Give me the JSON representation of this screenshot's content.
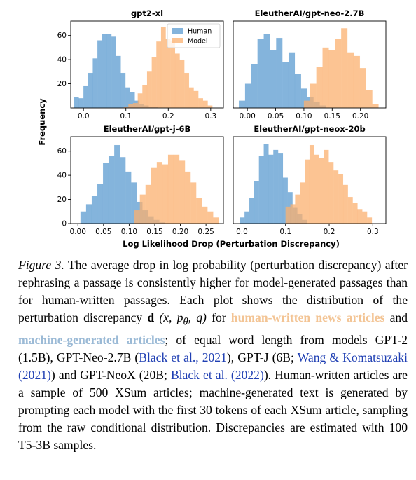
{
  "chart_data": [
    {
      "type": "histogram",
      "title": "gpt2-xl",
      "xticks": [
        "0.0",
        "0.1",
        "0.2",
        "0.3"
      ],
      "xlim": [
        -0.03,
        0.33
      ],
      "yticks": [
        "20",
        "40",
        "60"
      ],
      "ylim": [
        0,
        72
      ],
      "legend": {
        "position": "top-right",
        "entries": [
          "Human",
          "Model"
        ]
      },
      "series": [
        {
          "name": "Human",
          "color": "#5b9bd0",
          "bins": [
            [
              -0.022,
              -0.011,
              9
            ],
            [
              -0.011,
              0.0,
              8
            ],
            [
              0.0,
              0.011,
              18
            ],
            [
              0.011,
              0.022,
              29
            ],
            [
              0.022,
              0.033,
              41
            ],
            [
              0.033,
              0.044,
              56
            ],
            [
              0.044,
              0.055,
              61
            ],
            [
              0.055,
              0.066,
              61
            ],
            [
              0.066,
              0.077,
              59
            ],
            [
              0.077,
              0.088,
              43
            ],
            [
              0.088,
              0.099,
              29
            ],
            [
              0.099,
              0.11,
              17
            ],
            [
              0.11,
              0.121,
              13
            ],
            [
              0.121,
              0.132,
              6
            ],
            [
              0.132,
              0.143,
              3
            ],
            [
              0.143,
              0.154,
              2
            ],
            [
              0.154,
              0.165,
              1
            ],
            [
              0.165,
              0.176,
              1
            ]
          ]
        },
        {
          "name": "Model",
          "color": "#fbb06f",
          "bins": [
            [
              0.095,
              0.106,
              1
            ],
            [
              0.106,
              0.117,
              3
            ],
            [
              0.117,
              0.128,
              4
            ],
            [
              0.128,
              0.139,
              12
            ],
            [
              0.139,
              0.15,
              19
            ],
            [
              0.15,
              0.161,
              30
            ],
            [
              0.161,
              0.172,
              42
            ],
            [
              0.172,
              0.183,
              55
            ],
            [
              0.183,
              0.194,
              67
            ],
            [
              0.194,
              0.205,
              57
            ],
            [
              0.205,
              0.216,
              56
            ],
            [
              0.216,
              0.227,
              45
            ],
            [
              0.227,
              0.238,
              40
            ],
            [
              0.238,
              0.249,
              29
            ],
            [
              0.249,
              0.26,
              17
            ],
            [
              0.26,
              0.271,
              14
            ],
            [
              0.271,
              0.282,
              8
            ],
            [
              0.282,
              0.293,
              6
            ],
            [
              0.293,
              0.304,
              2
            ]
          ]
        }
      ]
    },
    {
      "type": "histogram",
      "title": "EleutherAI/gpt-neo-2.7B",
      "xticks": [
        "0.00",
        "0.05",
        "0.10",
        "0.15",
        "0.20"
      ],
      "xlim": [
        -0.025,
        0.245
      ],
      "yticks": [],
      "ylim": [
        0,
        72
      ],
      "series": [
        {
          "name": "Human",
          "color": "#5b9bd0",
          "bins": [
            [
              -0.015,
              -0.004,
              6
            ],
            [
              -0.004,
              0.007,
              20
            ],
            [
              0.007,
              0.018,
              36
            ],
            [
              0.018,
              0.029,
              57
            ],
            [
              0.029,
              0.04,
              61
            ],
            [
              0.04,
              0.051,
              48
            ],
            [
              0.051,
              0.062,
              58
            ],
            [
              0.062,
              0.073,
              38
            ],
            [
              0.073,
              0.084,
              46
            ],
            [
              0.084,
              0.095,
              28
            ],
            [
              0.095,
              0.106,
              16
            ],
            [
              0.106,
              0.117,
              9
            ],
            [
              0.117,
              0.128,
              5
            ],
            [
              0.128,
              0.139,
              2
            ]
          ]
        },
        {
          "name": "Model",
          "color": "#fbb06f",
          "bins": [
            [
              0.1,
              0.111,
              6
            ],
            [
              0.111,
              0.122,
              20
            ],
            [
              0.122,
              0.133,
              34
            ],
            [
              0.133,
              0.144,
              50
            ],
            [
              0.144,
              0.155,
              48
            ],
            [
              0.155,
              0.166,
              57
            ],
            [
              0.166,
              0.177,
              66
            ],
            [
              0.177,
              0.188,
              46
            ],
            [
              0.188,
              0.199,
              43
            ],
            [
              0.199,
              0.21,
              33
            ],
            [
              0.21,
              0.221,
              15
            ],
            [
              0.221,
              0.232,
              3
            ]
          ]
        }
      ]
    },
    {
      "type": "histogram",
      "title": "EleutherAI/gpt-j-6B",
      "xticks": [
        "0.00",
        "0.05",
        "0.10",
        "0.15",
        "0.20",
        "0.25"
      ],
      "xlim": [
        -0.014,
        0.284
      ],
      "yticks": [
        "0",
        "20",
        "40",
        "60"
      ],
      "ylim": [
        0,
        72
      ],
      "series": [
        {
          "name": "Human",
          "color": "#5b9bd0",
          "bins": [
            [
              0.005,
              0.016,
              10
            ],
            [
              0.016,
              0.027,
              16
            ],
            [
              0.027,
              0.038,
              23
            ],
            [
              0.038,
              0.049,
              33
            ],
            [
              0.049,
              0.06,
              50
            ],
            [
              0.06,
              0.071,
              56
            ],
            [
              0.071,
              0.082,
              65
            ],
            [
              0.082,
              0.093,
              55
            ],
            [
              0.093,
              0.104,
              43
            ],
            [
              0.104,
              0.115,
              34
            ],
            [
              0.115,
              0.126,
              18
            ],
            [
              0.126,
              0.137,
              11
            ],
            [
              0.137,
              0.148,
              6
            ],
            [
              0.148,
              0.159,
              3
            ],
            [
              0.159,
              0.17,
              1
            ]
          ]
        },
        {
          "name": "Model",
          "color": "#fbb06f",
          "bins": [
            [
              0.11,
              0.121,
              11
            ],
            [
              0.121,
              0.132,
              24
            ],
            [
              0.132,
              0.143,
              32
            ],
            [
              0.143,
              0.154,
              46
            ],
            [
              0.154,
              0.165,
              51
            ],
            [
              0.165,
              0.176,
              49
            ],
            [
              0.176,
              0.187,
              57
            ],
            [
              0.187,
              0.198,
              57
            ],
            [
              0.198,
              0.209,
              52
            ],
            [
              0.209,
              0.22,
              43
            ],
            [
              0.22,
              0.231,
              34
            ],
            [
              0.231,
              0.242,
              21
            ],
            [
              0.242,
              0.253,
              14
            ],
            [
              0.253,
              0.264,
              10
            ],
            [
              0.264,
              0.275,
              5
            ]
          ]
        }
      ]
    },
    {
      "type": "histogram",
      "title": "EleutherAI/gpt-neox-20b",
      "xticks": [
        "0.0",
        "0.1",
        "0.2",
        "0.3"
      ],
      "xlim": [
        -0.02,
        0.33
      ],
      "yticks": [],
      "ylim": [
        0,
        72
      ],
      "series": [
        {
          "name": "Human",
          "color": "#5b9bd0",
          "bins": [
            [
              -0.005,
              0.006,
              5
            ],
            [
              0.006,
              0.017,
              10
            ],
            [
              0.017,
              0.028,
              21
            ],
            [
              0.028,
              0.039,
              35
            ],
            [
              0.039,
              0.05,
              56
            ],
            [
              0.05,
              0.061,
              66
            ],
            [
              0.061,
              0.072,
              57
            ],
            [
              0.072,
              0.083,
              61
            ],
            [
              0.083,
              0.094,
              58
            ],
            [
              0.094,
              0.105,
              38
            ],
            [
              0.105,
              0.116,
              26
            ],
            [
              0.116,
              0.127,
              13
            ],
            [
              0.127,
              0.138,
              8
            ],
            [
              0.138,
              0.149,
              3
            ]
          ]
        },
        {
          "name": "Model",
          "color": "#fbb06f",
          "bins": [
            [
              0.1,
              0.111,
              14
            ],
            [
              0.111,
              0.122,
              16
            ],
            [
              0.122,
              0.133,
              24
            ],
            [
              0.133,
              0.144,
              34
            ],
            [
              0.144,
              0.155,
              53
            ],
            [
              0.155,
              0.166,
              65
            ],
            [
              0.166,
              0.177,
              57
            ],
            [
              0.177,
              0.188,
              54
            ],
            [
              0.188,
              0.199,
              61
            ],
            [
              0.199,
              0.21,
              51
            ],
            [
              0.21,
              0.221,
              44
            ],
            [
              0.221,
              0.232,
              41
            ],
            [
              0.232,
              0.243,
              32
            ],
            [
              0.243,
              0.254,
              22
            ],
            [
              0.254,
              0.265,
              17
            ],
            [
              0.265,
              0.276,
              12
            ],
            [
              0.276,
              0.287,
              10
            ],
            [
              0.287,
              0.298,
              5
            ]
          ]
        }
      ]
    }
  ],
  "figure": {
    "ylabel": "Frequency",
    "xlabel": "Log Likelihood Drop (Perturbation Discrepancy)"
  },
  "caption": {
    "label": "Figure 3.",
    "text1": " The average drop in log probability (perturbation discrepancy) after rephrasing a passage is consistently higher for model-generated passages than for human-written passages. Each plot shows the distribution of the perturbation discrepancy ",
    "math_d": "d",
    "math_args": " (x, p",
    "math_sub": "θ",
    "math_close": ", q)",
    "text2": " for ",
    "human_link": "human-written news articles",
    "text3": " and ",
    "machine_link": "machine-generated articles",
    "text4": "; of equal word length from models GPT-2 (1.5B), GPT-Neo-2.7B (",
    "cite1": "Black et al., 2021",
    "text5": "), GPT-J (6B; ",
    "cite2": "Wang & Komatsuzaki (2021)",
    "text6": ") and GPT-NeoX (20B; ",
    "cite3": "Black et al. (2022)",
    "text7": "). Human-written articles are a sample of 500 XSum articles; machine-generated text is generated by prompting each model with the first 30 tokens of each XSum article, sampling from the raw conditional distribution. Discrepancies are estimated with 100 T5-3B samples."
  }
}
